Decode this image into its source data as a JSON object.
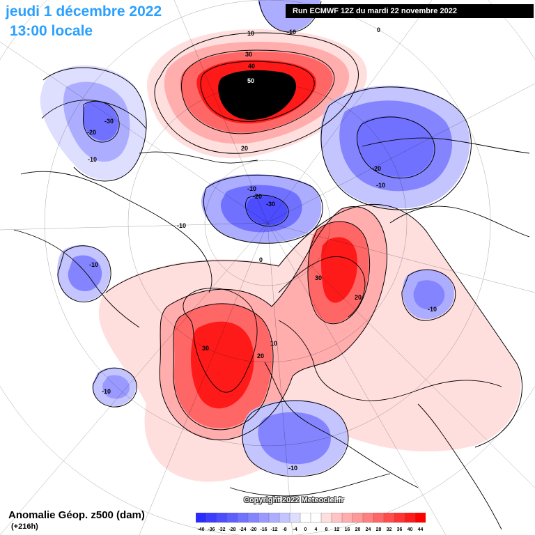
{
  "header": {
    "date": "jeudi 1 décembre 2022",
    "local_time": "13:00 locale",
    "run_info": "Run ECMWF 12Z du mardi 22 novembre 2022"
  },
  "footer": {
    "variable": "Anomalie Géop. z500 (dam)",
    "lead_time": "(+216h)",
    "copyright": "Copyright 2022 Meteociel.fr"
  },
  "legend": {
    "colors": [
      "#2b2bff",
      "#3c3cff",
      "#4d4dff",
      "#5e5eff",
      "#7171ff",
      "#8484ff",
      "#9999ff",
      "#adadff",
      "#c4c4ff",
      "#dedeff",
      "#ffffff",
      "#ffffff",
      "#ffdede",
      "#ffc4c4",
      "#ffadad",
      "#ff9999",
      "#ff8080",
      "#ff6666",
      "#ff4d4d",
      "#ff3333",
      "#ff1a1a",
      "#ff0000"
    ],
    "labels": [
      "-40",
      "-36",
      "-32",
      "-28",
      "-24",
      "-20",
      "-16",
      "-12",
      "-8",
      "-4",
      "0",
      "4",
      "8",
      "12",
      "16",
      "20",
      "24",
      "28",
      "32",
      "36",
      "40",
      "44"
    ]
  },
  "contour_labels": [
    "10",
    "0",
    "-10",
    "30",
    "40",
    "50",
    "-30",
    "-20",
    "-10",
    "20",
    "-20",
    "-10",
    "-10",
    "-20",
    "-30",
    "-10",
    "0",
    "-10",
    "30",
    "20",
    "-10",
    "30",
    "20",
    "10",
    "-10",
    "-10"
  ]
}
